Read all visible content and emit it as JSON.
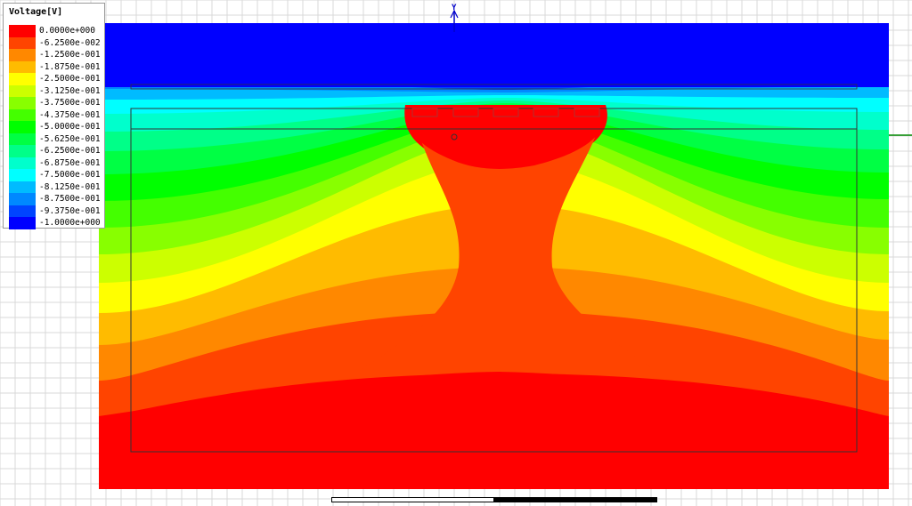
{
  "legend": {
    "title": "Voltage[V]",
    "entries": [
      {
        "label": "0.0000e+000",
        "color": "#ff0000"
      },
      {
        "label": "-6.2500e-002",
        "color": "#ff4400"
      },
      {
        "label": "-1.2500e-001",
        "color": "#ff8800"
      },
      {
        "label": "-1.8750e-001",
        "color": "#ffbb00"
      },
      {
        "label": "-2.5000e-001",
        "color": "#ffff00"
      },
      {
        "label": "-3.1250e-001",
        "color": "#ccff00"
      },
      {
        "label": "-3.7500e-001",
        "color": "#88ff00"
      },
      {
        "label": "-4.3750e-001",
        "color": "#44ff00"
      },
      {
        "label": "-5.0000e-001",
        "color": "#00ff00"
      },
      {
        "label": "-5.6250e-001",
        "color": "#00ff44"
      },
      {
        "label": "-6.2500e-001",
        "color": "#00ff88"
      },
      {
        "label": "-6.8750e-001",
        "color": "#00ffcc"
      },
      {
        "label": "-7.5000e-001",
        "color": "#00ffff"
      },
      {
        "label": "-8.1250e-001",
        "color": "#00bbff"
      },
      {
        "label": "-8.7500e-001",
        "color": "#0088ff"
      },
      {
        "label": "-9.3750e-001",
        "color": "#0044ff"
      },
      {
        "label": "-1.0000e+000",
        "color": "#0000ff"
      }
    ]
  },
  "axes": {
    "y_label": "Y",
    "axis_color": "#0000cc",
    "x_axis_color": "#008800"
  },
  "colors": {
    "grid": "#d8d8d8",
    "outline": "#333333"
  }
}
